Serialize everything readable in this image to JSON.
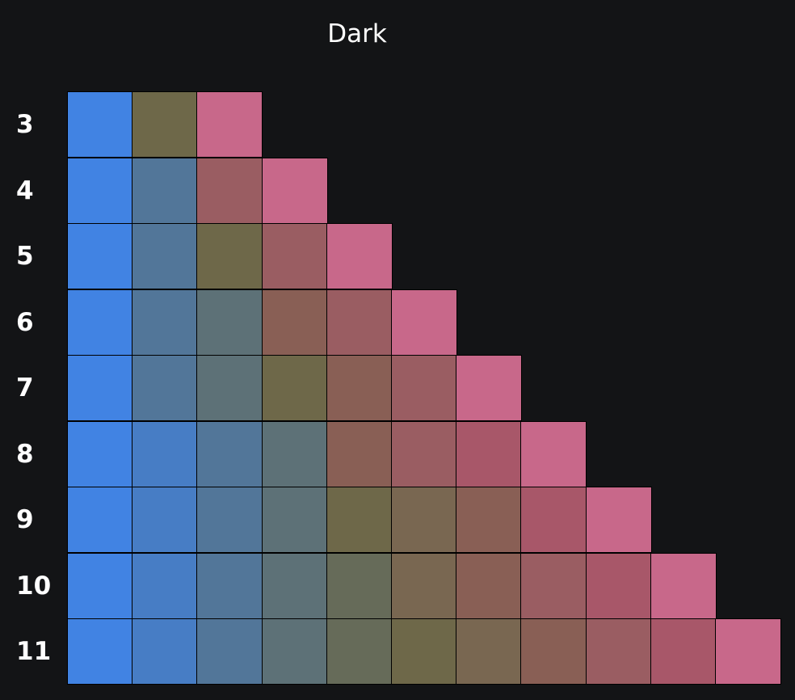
{
  "title": "Dark",
  "rows": [
    {
      "label": "3",
      "colors": [
        "#4183e3",
        "#6e6849",
        "#c8688a"
      ]
    },
    {
      "label": "4",
      "colors": [
        "#4183e3",
        "#527699",
        "#9a5d62",
        "#c8688a"
      ]
    },
    {
      "label": "5",
      "colors": [
        "#4183e3",
        "#527699",
        "#6e6849",
        "#9a5d62",
        "#c8688a"
      ]
    },
    {
      "label": "6",
      "colors": [
        "#4183e3",
        "#527699",
        "#5d7177",
        "#895f55",
        "#9a5d62",
        "#c8688a"
      ]
    },
    {
      "label": "7",
      "colors": [
        "#4183e3",
        "#527699",
        "#5d7177",
        "#6e6849",
        "#895f55",
        "#9a5d62",
        "#c8688a"
      ]
    },
    {
      "label": "8",
      "colors": [
        "#4183e3",
        "#477dc5",
        "#527699",
        "#5d7177",
        "#895f55",
        "#9a5d62",
        "#a85769",
        "#c8688a"
      ]
    },
    {
      "label": "9",
      "colors": [
        "#4183e3",
        "#477dc5",
        "#527699",
        "#5d7177",
        "#6e6849",
        "#796751",
        "#895f55",
        "#a85769",
        "#c8688a"
      ]
    },
    {
      "label": "10",
      "colors": [
        "#4183e3",
        "#477dc5",
        "#527699",
        "#5d7177",
        "#666b59",
        "#796751",
        "#895f55",
        "#9a5d62",
        "#a85769",
        "#c8688a"
      ]
    },
    {
      "label": "11",
      "colors": [
        "#4183e3",
        "#477dc5",
        "#527699",
        "#5d7177",
        "#666b59",
        "#6e6849",
        "#796751",
        "#895f55",
        "#9a5d62",
        "#a85769",
        "#c8688a"
      ]
    }
  ]
}
